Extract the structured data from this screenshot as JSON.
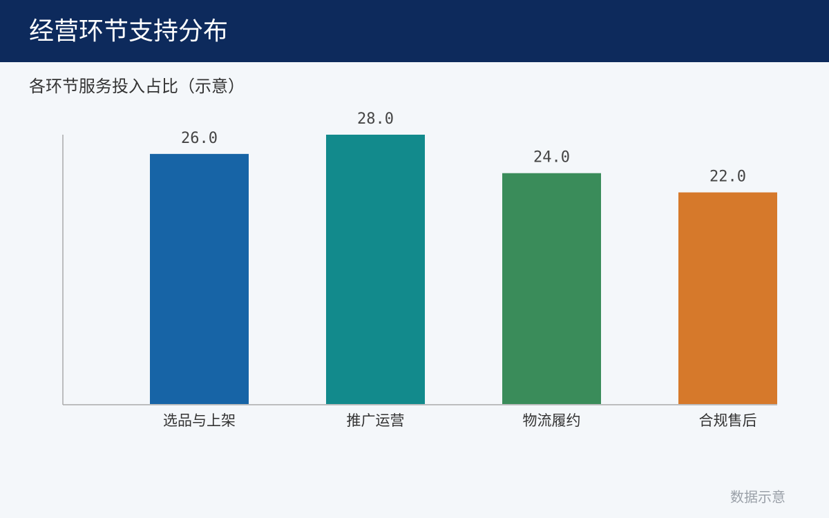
{
  "chart_data": {
    "type": "bar",
    "title": "经营环节支持分布",
    "subtitle": "各环节服务投入占比（示意）",
    "categories": [
      "选品与上架",
      "推广运营",
      "物流履约",
      "合规售后"
    ],
    "values": [
      26.0,
      28.0,
      24.0,
      22.0
    ],
    "value_labels": [
      "26.0",
      "28.0",
      "24.0",
      "22.0"
    ],
    "colors": [
      "#1764a6",
      "#128a8c",
      "#3a8c5a",
      "#d6792b"
    ],
    "ylim": [
      0,
      28
    ],
    "grid": false,
    "note": "数据示意"
  }
}
